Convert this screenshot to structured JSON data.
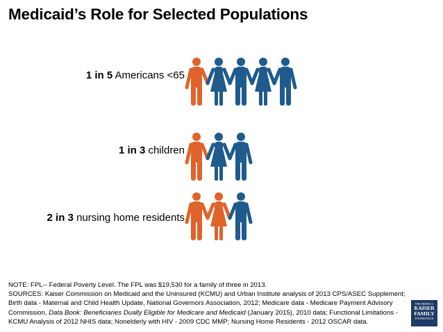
{
  "title": "Medicaid’s Role for Selected Populations",
  "colors": {
    "highlight": "#e0632a",
    "base": "#1f5b8c",
    "logo": "#1f3a66"
  },
  "rows": [
    {
      "ratio": "1 in 5",
      "label": " Americans <65",
      "people": [
        "man",
        "woman",
        "man",
        "woman",
        "man"
      ],
      "highlighted": 1
    },
    {
      "ratio": "1 in 3",
      "label": " children",
      "people": [
        "man",
        "woman",
        "man"
      ],
      "highlighted": 1
    },
    {
      "ratio": "2 in 3",
      "label": " nursing home residents",
      "people": [
        "man",
        "woman",
        "man"
      ],
      "highlighted": 2
    }
  ],
  "notes": {
    "note": "NOTE: FPL-- Federal Poverty Level. The FPL was $19,530 for a family of three in 2013.",
    "sources_pre": "SOURCES: Kaiser Commission on Medicaid and the Uninsured (KCMU) and Urban Institute analysis of 2013 CPS/ASEC Supplement; Birth data - Maternal and Child Health Update, National Governors Association, 2012; Medicare data - Medicare Payment Advisory Commission, ",
    "sources_italic": "Data Book: Beneficiaries Dually Eligible for Medicare and Medicaid",
    "sources_post": " (January 2015), 2010 data; Functional Limitations - KCMU Analysis of 2012 NHIS data; Nonelderly with HIV - 2009 CDC MMP; Nursing Home Residents - 2012 OSCAR data."
  },
  "logo": {
    "line1": "THE HENRY J.",
    "line2": "KAISER",
    "line3": "FAMILY",
    "line4": "FOUNDATION"
  }
}
